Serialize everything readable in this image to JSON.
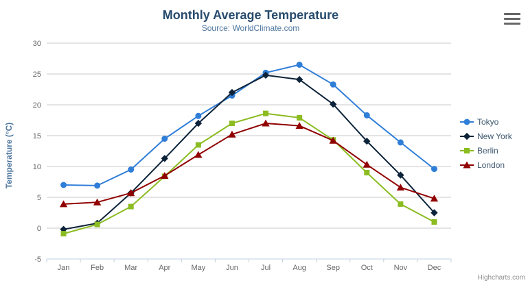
{
  "header": {
    "title": "Monthly Average Temperature",
    "subtitle": "Source: WorldClimate.com"
  },
  "icons": {
    "menu": "hamburger-menu-icon"
  },
  "credit": {
    "label": "Highcharts.com"
  },
  "theme": {
    "title_color": "#274b6d",
    "subtitle_color": "#4d759e",
    "axis_title_color": "#4d759e",
    "tick_label_color": "#666666",
    "legend_text_color": "#3E576F",
    "grid_color": "#C8C8C8",
    "axis_line_color": "#C0D0E0",
    "background": "#ffffff"
  },
  "chart_data": {
    "type": "line",
    "title": "Monthly Average Temperature",
    "subtitle": "Source: WorldClimate.com",
    "xlabel": "",
    "ylabel": "Temperature (°C)",
    "ylim": [
      -5,
      30
    ],
    "ytick_step": 5,
    "grid": true,
    "legend_position": "right",
    "categories": [
      "Jan",
      "Feb",
      "Mar",
      "Apr",
      "May",
      "Jun",
      "Jul",
      "Aug",
      "Sep",
      "Oct",
      "Nov",
      "Dec"
    ],
    "series": [
      {
        "name": "Tokyo",
        "color": "#2f7ed8",
        "marker": "circle",
        "values": [
          7.0,
          6.9,
          9.5,
          14.5,
          18.2,
          21.5,
          25.2,
          26.5,
          23.3,
          18.3,
          13.9,
          9.6
        ]
      },
      {
        "name": "New York",
        "color": "#0d233a",
        "marker": "diamond",
        "values": [
          -0.2,
          0.8,
          5.7,
          11.3,
          17.0,
          22.0,
          24.8,
          24.1,
          20.1,
          14.1,
          8.6,
          2.5
        ]
      },
      {
        "name": "Berlin",
        "color": "#8bbc21",
        "marker": "square",
        "values": [
          -0.9,
          0.6,
          3.5,
          8.4,
          13.5,
          17.0,
          18.6,
          17.9,
          14.3,
          9.0,
          3.9,
          1.0
        ]
      },
      {
        "name": "London",
        "color": "#910000",
        "marker": "triangle",
        "values": [
          3.9,
          4.2,
          5.7,
          8.5,
          11.9,
          15.2,
          17.0,
          16.6,
          14.2,
          10.3,
          6.6,
          4.8
        ]
      }
    ]
  }
}
